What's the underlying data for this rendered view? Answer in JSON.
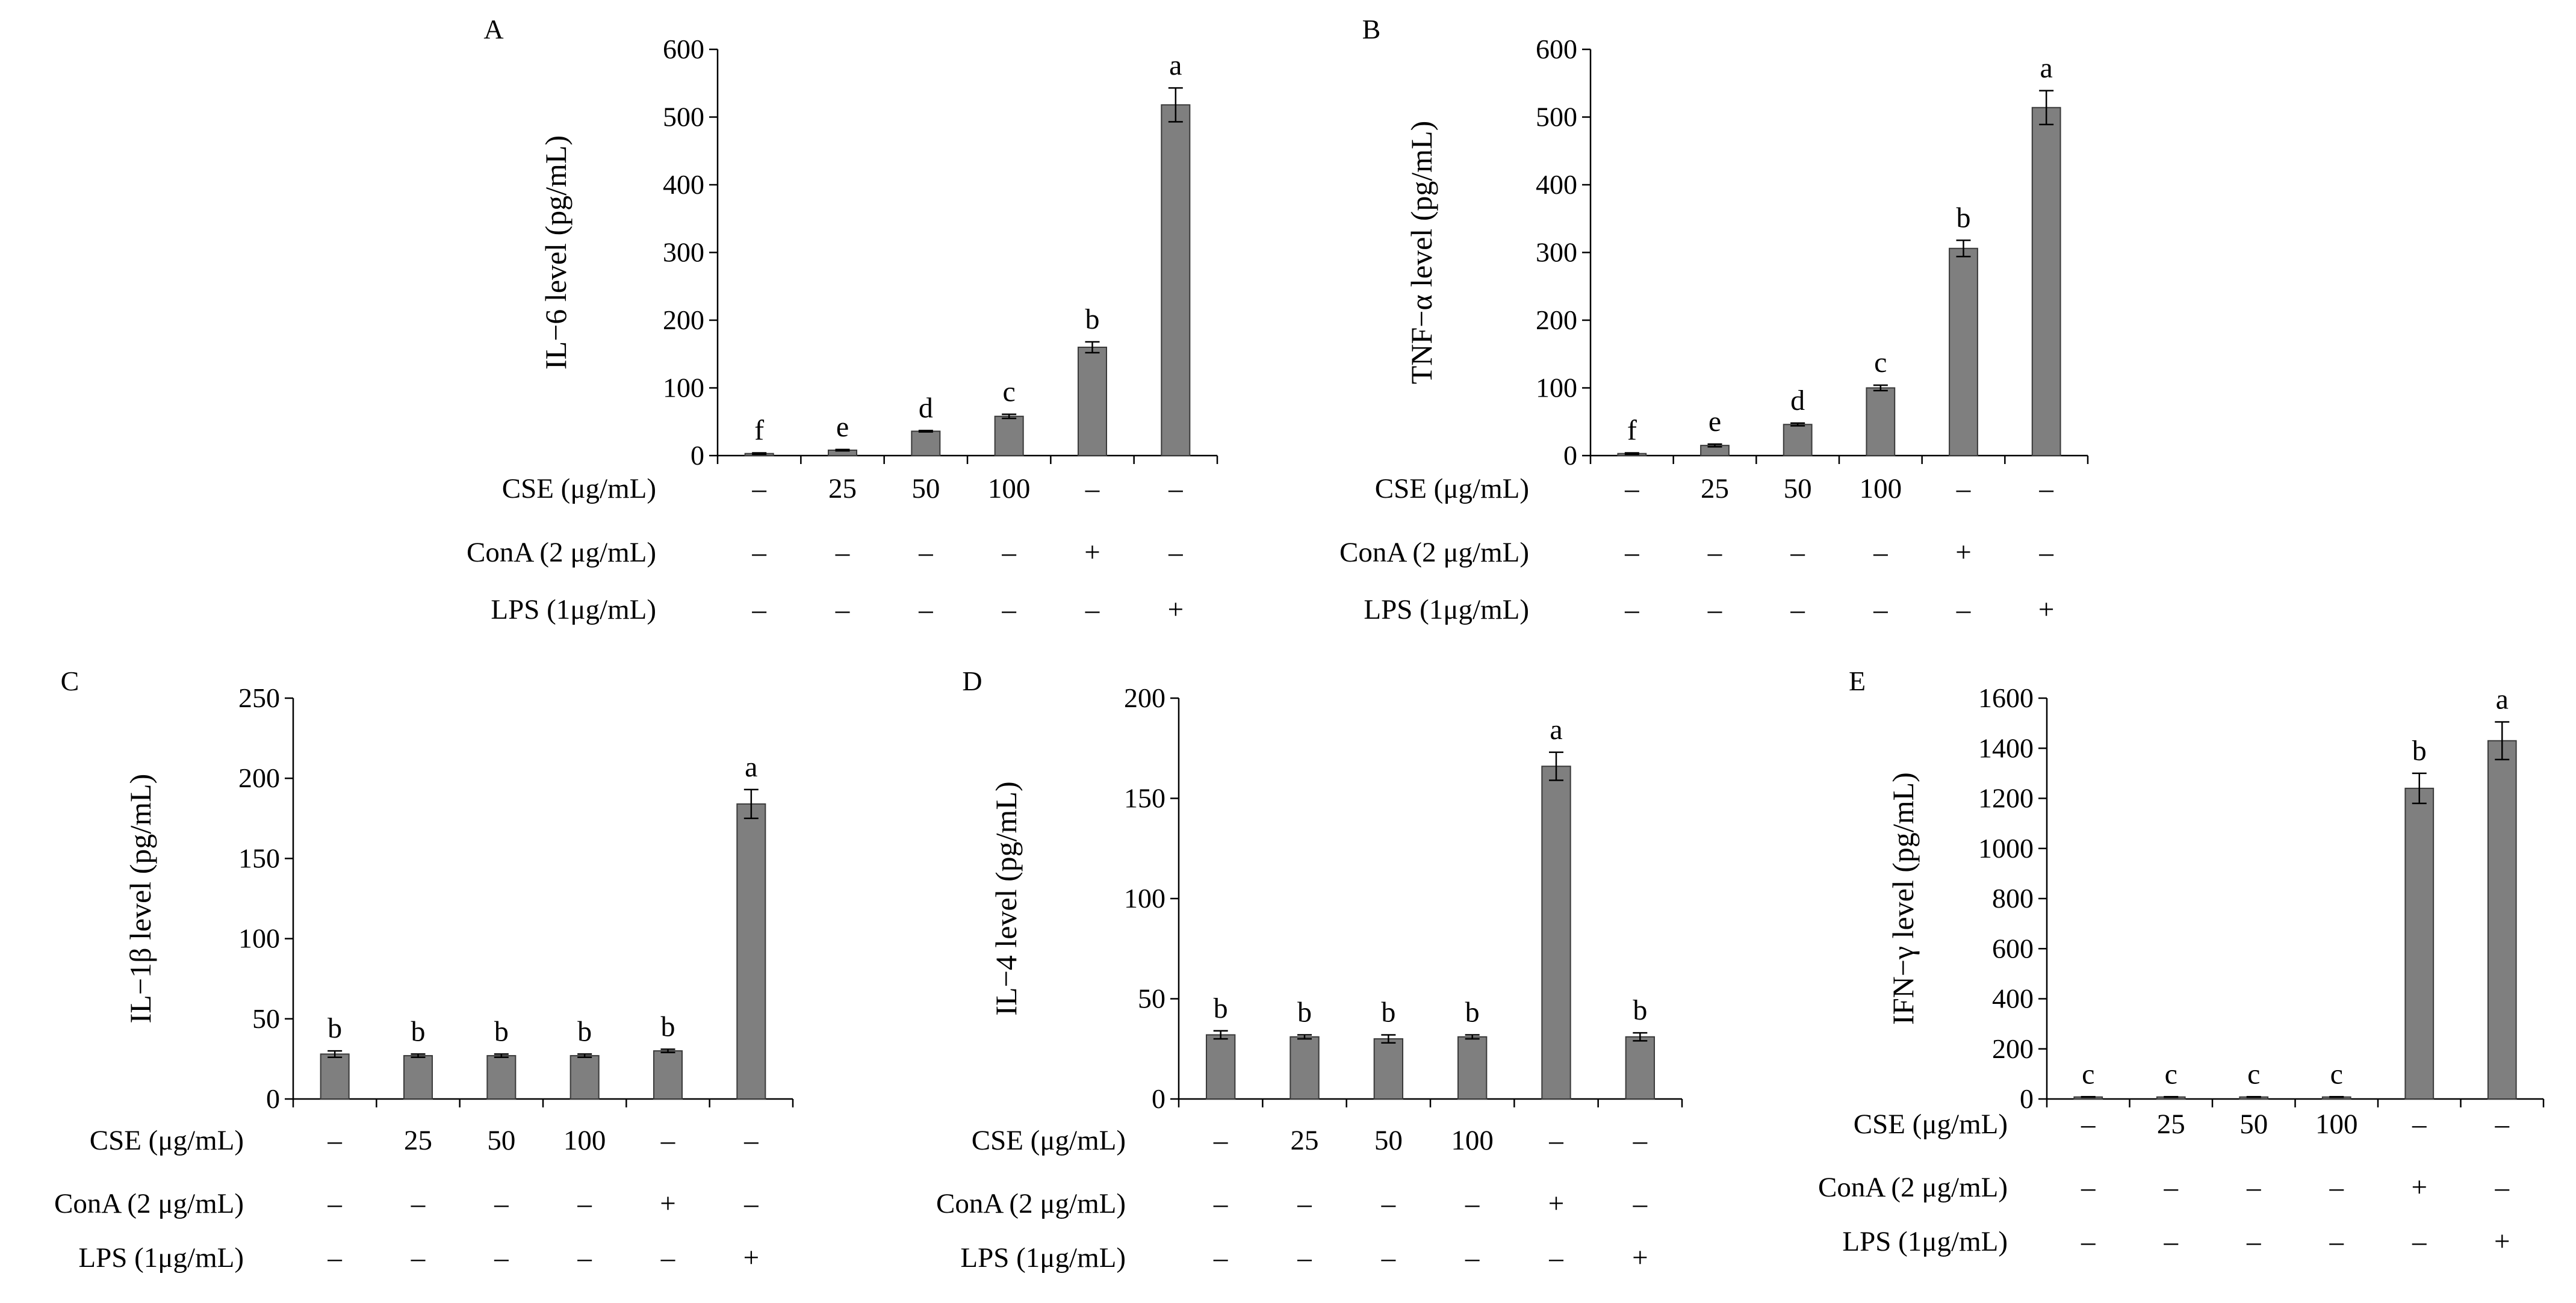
{
  "figure": {
    "row_labels": [
      "CSE (μg/mL)",
      "ConA (2 μg/mL)",
      "LPS (1μg/mL)"
    ],
    "treatments": {
      "CSE": [
        "–",
        "25",
        "50",
        "100",
        "–",
        "–"
      ],
      "ConA": [
        "–",
        "–",
        "–",
        "–",
        "+",
        "–"
      ],
      "LPS": [
        "–",
        "–",
        "–",
        "–",
        "–",
        "+"
      ]
    },
    "bar_color": "#7f7f7f"
  },
  "chart_data": [
    {
      "panel": "A",
      "type": "bar",
      "ylabel": "IL−6 level (pg/mL)",
      "ylim": [
        0,
        600
      ],
      "yticks": [
        0,
        100,
        200,
        300,
        400,
        500,
        600
      ],
      "values": [
        3,
        8,
        36,
        58,
        160,
        518
      ],
      "errors": [
        1,
        1,
        1,
        3,
        8,
        25
      ],
      "sig": [
        "f",
        "e",
        "d",
        "c",
        "b",
        "a"
      ]
    },
    {
      "panel": "B",
      "type": "bar",
      "ylabel": "TNF−α level (pg/mL)",
      "ylim": [
        0,
        600
      ],
      "yticks": [
        0,
        100,
        200,
        300,
        400,
        500,
        600
      ],
      "values": [
        3,
        15,
        46,
        100,
        306,
        514
      ],
      "errors": [
        1,
        2,
        2,
        4,
        12,
        25
      ],
      "sig": [
        "f",
        "e",
        "d",
        "c",
        "b",
        "a"
      ]
    },
    {
      "panel": "C",
      "type": "bar",
      "ylabel": "IL−1β level (pg/mL)",
      "ylim": [
        0,
        250
      ],
      "yticks": [
        0,
        50,
        100,
        150,
        200,
        250
      ],
      "values": [
        28,
        27,
        27,
        27,
        30,
        184
      ],
      "errors": [
        2,
        1,
        1,
        1,
        1,
        9
      ],
      "sig": [
        "b",
        "b",
        "b",
        "b",
        "b",
        "a"
      ]
    },
    {
      "panel": "D",
      "type": "bar",
      "ylabel": "IL−4 level (pg/mL)",
      "ylim": [
        0,
        200
      ],
      "yticks": [
        0,
        50,
        100,
        150,
        200
      ],
      "values": [
        32,
        31,
        30,
        31,
        166,
        31
      ],
      "errors": [
        2,
        1,
        2,
        1,
        7,
        2
      ],
      "sig": [
        "b",
        "b",
        "b",
        "b",
        "a",
        "b"
      ]
    },
    {
      "panel": "E",
      "type": "bar",
      "ylabel": "IFN−γ level (pg/mL)",
      "ylim": [
        0,
        1600
      ],
      "yticks": [
        0,
        200,
        400,
        600,
        800,
        1000,
        1200,
        1400,
        1600
      ],
      "values": [
        8,
        8,
        8,
        8,
        1240,
        1430
      ],
      "errors": [
        1,
        1,
        1,
        1,
        60,
        75
      ],
      "sig": [
        "c",
        "c",
        "c",
        "c",
        "b",
        "a"
      ]
    }
  ]
}
